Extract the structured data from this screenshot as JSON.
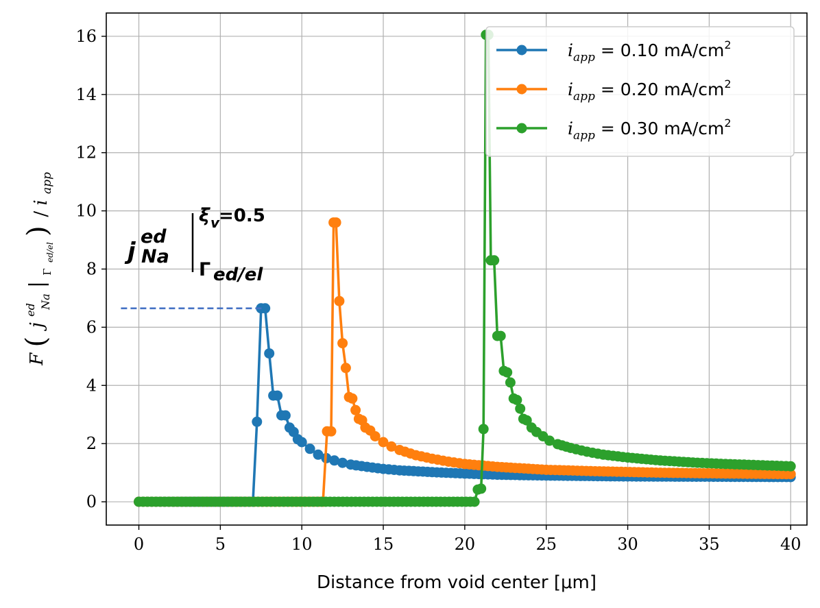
{
  "chart_data": {
    "type": "line",
    "xlabel": "Distance from void center [μm]",
    "ylabel": {
      "prefix": "F",
      "j": "j",
      "sup": "ed",
      "sub": "Na",
      "eval_sub": "Γ",
      "eval_sub_tail": "ed/el",
      "div": "/",
      "i": "i",
      "i_sub": "app"
    },
    "xlim": [
      -2,
      41
    ],
    "ylim": [
      -0.8,
      16.8
    ],
    "xticks": [
      0,
      5,
      10,
      15,
      20,
      25,
      30,
      35,
      40
    ],
    "yticks": [
      0,
      2,
      4,
      6,
      8,
      10,
      12,
      14,
      16
    ],
    "grid": true,
    "legend_position": "top-right",
    "series": [
      {
        "name": "i_app = 0.10 mA/cm2",
        "legend": {
          "i": "i",
          "sub": "app",
          "eq": "= 0.10 mA/cm",
          "sup": "2"
        },
        "color": "#1f77b4",
        "peak_x": 7.6,
        "peak_y": 6.65,
        "points": [
          [
            0,
            0
          ],
          [
            7.0,
            0
          ],
          [
            7.25,
            2.75
          ],
          [
            7.5,
            6.65
          ],
          [
            7.75,
            6.65
          ],
          [
            8.0,
            5.1
          ],
          [
            8.25,
            3.65
          ],
          [
            8.5,
            3.65
          ],
          [
            8.75,
            2.97
          ],
          [
            9.0,
            2.97
          ],
          [
            9.25,
            2.55
          ],
          [
            9.5,
            2.4
          ],
          [
            9.75,
            2.15
          ],
          [
            10,
            2.05
          ],
          [
            10.5,
            1.82
          ],
          [
            11,
            1.62
          ],
          [
            11.5,
            1.5
          ],
          [
            12,
            1.42
          ],
          [
            12.5,
            1.34
          ],
          [
            13,
            1.28
          ],
          [
            14,
            1.2
          ],
          [
            15,
            1.13
          ],
          [
            16,
            1.08
          ],
          [
            18,
            1.02
          ],
          [
            20,
            0.97
          ],
          [
            22,
            0.93
          ],
          [
            25,
            0.9
          ],
          [
            30,
            0.87
          ],
          [
            35,
            0.86
          ],
          [
            40,
            0.85
          ]
        ]
      },
      {
        "name": "i_app = 0.20 mA/cm2",
        "legend": {
          "i": "i",
          "sub": "app",
          "eq": "= 0.20 mA/cm",
          "sup": "2"
        },
        "color": "#ff7f0e",
        "points": [
          [
            0,
            0
          ],
          [
            11.3,
            0
          ],
          [
            11.55,
            2.42
          ],
          [
            11.8,
            2.42
          ],
          [
            11.95,
            9.6
          ],
          [
            12.1,
            9.6
          ],
          [
            12.3,
            6.9
          ],
          [
            12.5,
            5.45
          ],
          [
            12.7,
            4.6
          ],
          [
            12.9,
            3.6
          ],
          [
            13.1,
            3.55
          ],
          [
            13.3,
            3.15
          ],
          [
            13.5,
            2.85
          ],
          [
            13.7,
            2.8
          ],
          [
            13.9,
            2.55
          ],
          [
            14.2,
            2.45
          ],
          [
            14.5,
            2.25
          ],
          [
            15,
            2.05
          ],
          [
            15.5,
            1.9
          ],
          [
            16,
            1.78
          ],
          [
            17,
            1.6
          ],
          [
            18,
            1.48
          ],
          [
            19,
            1.38
          ],
          [
            20,
            1.3
          ],
          [
            22,
            1.2
          ],
          [
            25,
            1.1
          ],
          [
            28,
            1.05
          ],
          [
            32,
            1.0
          ],
          [
            36,
            0.97
          ],
          [
            40,
            0.95
          ]
        ]
      },
      {
        "name": "i_app = 0.30 mA/cm2",
        "legend": {
          "i": "i",
          "sub": "app",
          "eq": "= 0.30 mA/cm",
          "sup": "2"
        },
        "color": "#2ca02c",
        "points": [
          [
            0,
            0
          ],
          [
            20.6,
            0
          ],
          [
            20.8,
            0.42
          ],
          [
            21.0,
            0.45
          ],
          [
            21.15,
            2.5
          ],
          [
            21.3,
            16.05
          ],
          [
            21.45,
            16.05
          ],
          [
            21.6,
            8.3
          ],
          [
            21.8,
            8.3
          ],
          [
            22.0,
            5.7
          ],
          [
            22.2,
            5.7
          ],
          [
            22.4,
            4.5
          ],
          [
            22.6,
            4.45
          ],
          [
            22.8,
            4.1
          ],
          [
            23.0,
            3.55
          ],
          [
            23.2,
            3.5
          ],
          [
            23.4,
            3.2
          ],
          [
            23.6,
            2.85
          ],
          [
            23.8,
            2.8
          ],
          [
            24.1,
            2.55
          ],
          [
            24.4,
            2.4
          ],
          [
            24.8,
            2.25
          ],
          [
            25.2,
            2.1
          ],
          [
            25.7,
            1.98
          ],
          [
            26.5,
            1.85
          ],
          [
            27.5,
            1.72
          ],
          [
            28.5,
            1.62
          ],
          [
            30,
            1.52
          ],
          [
            32,
            1.42
          ],
          [
            34,
            1.35
          ],
          [
            36,
            1.3
          ],
          [
            38,
            1.26
          ],
          [
            40,
            1.22
          ]
        ]
      }
    ],
    "annotation": {
      "j": "j",
      "sup": "ed",
      "sub": "Na",
      "upper": "ξ",
      "upper_sub": "v",
      "upper_tail": "=0.5",
      "lower": "Γ",
      "lower_sub": "ed/el",
      "dashed_y": 6.65,
      "dashed_x_start": -1.1,
      "dashed_color": "#4472c4"
    }
  }
}
